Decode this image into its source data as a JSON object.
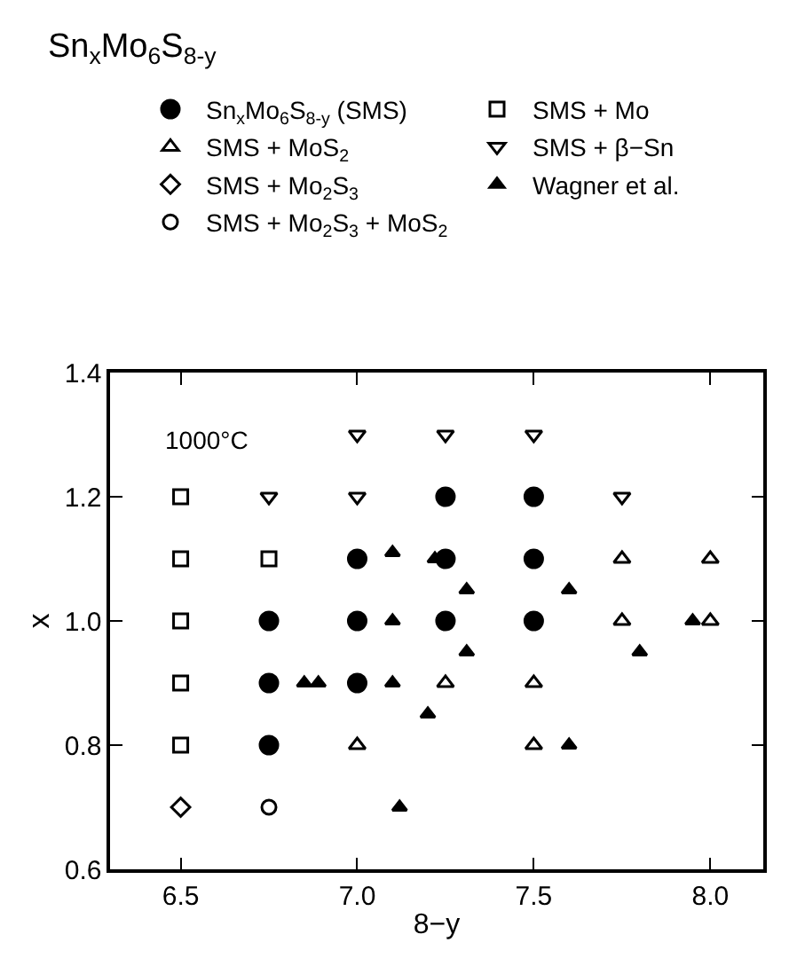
{
  "chart_data": {
    "type": "scatter",
    "title": "Sn$_{x}$Mo$_{6}$S$_{8-y}$",
    "xlabel": "8−y",
    "ylabel": "x",
    "annotations": [
      "1000°C"
    ],
    "xlim": [
      6.3,
      8.15
    ],
    "xticks": [
      6.5,
      {
        "value": 7,
        "label": "7.0"
      },
      7.5,
      {
        "value": 8,
        "label": "8.0"
      }
    ],
    "ylim": [
      0.6,
      1.4
    ],
    "yticks": [
      0.6,
      0.8,
      {
        "value": 1,
        "label": "1.0"
      },
      1.2,
      1.4
    ],
    "legend": "top",
    "series": [
      {
        "name": "Sn$_{x}$Mo$_{6}$S$_{8-y}$ (SMS)",
        "color": "#000000",
        "marker": "circle",
        "x": [
          6.75,
          6.75,
          6.75,
          7.0,
          7.0,
          7.0,
          7.25,
          7.25,
          7.25,
          7.5,
          7.5,
          7.5
        ],
        "values": [
          1.0,
          0.9,
          0.8,
          1.1,
          1.0,
          0.9,
          1.2,
          1.1,
          1.0,
          1.2,
          1.1,
          1.0
        ]
      },
      {
        "name": "SMS + Mo",
        "color": "#000000",
        "marker": "square-open",
        "x": [
          6.5,
          6.5,
          6.5,
          6.5,
          6.5,
          6.75
        ],
        "values": [
          1.2,
          1.1,
          1.0,
          0.9,
          0.8,
          1.1
        ]
      },
      {
        "name": "SMS + MoS$_{2}$",
        "color": "#000000",
        "marker": "triangle-open",
        "x": [
          7.0,
          7.25,
          7.5,
          7.5,
          7.75,
          7.75,
          8.0,
          8.0
        ],
        "values": [
          0.8,
          0.9,
          0.9,
          0.8,
          1.1,
          1.0,
          1.1,
          1.0
        ]
      },
      {
        "name": "SMS + β−Sn",
        "color": "#000000",
        "marker": "triangle-down-open",
        "x": [
          6.75,
          7.0,
          7.0,
          7.25,
          7.5,
          7.75
        ],
        "values": [
          1.2,
          1.3,
          1.2,
          1.3,
          1.3,
          1.2
        ]
      },
      {
        "name": "SMS + Mo$_{2}$S$_{3}$",
        "color": "#000000",
        "marker": "diamond-open",
        "x": [
          6.5
        ],
        "values": [
          0.7
        ]
      },
      {
        "name": "Wagner et al.",
        "color": "#000000",
        "marker": "triangle",
        "x": [
          6.85,
          6.89,
          7.1,
          7.1,
          7.1,
          7.12,
          7.2,
          7.22,
          7.31,
          7.31,
          7.6,
          7.6,
          7.8,
          7.95
        ],
        "values": [
          0.9,
          0.9,
          1.0,
          1.11,
          0.9,
          0.7,
          0.85,
          1.1,
          1.05,
          0.95,
          1.05,
          0.8,
          0.95,
          1.0
        ]
      },
      {
        "name": "SMS + Mo$_{2}$S$_{3}$ + MoS$_{2}$",
        "color": "#000000",
        "marker": "circle-open",
        "x": [
          6.75
        ],
        "values": [
          0.7
        ]
      }
    ]
  }
}
